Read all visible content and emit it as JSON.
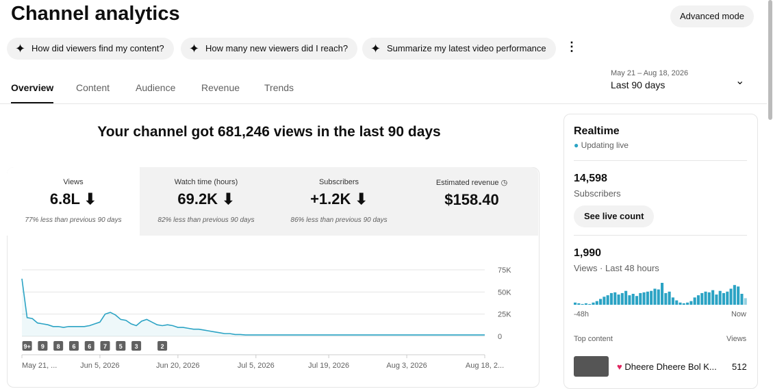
{
  "header": {
    "title": "Channel analytics",
    "advanced_button": "Advanced mode"
  },
  "chips": [
    "How did viewers find my content?",
    "How many new viewers did I reach?",
    "Summarize my latest video performance"
  ],
  "tabs": [
    "Overview",
    "Content",
    "Audience",
    "Revenue",
    "Trends"
  ],
  "date_range": {
    "range": "May 21 – Aug 18, 2026",
    "label": "Last 90 days"
  },
  "headline": "Your channel got 681,246 views in the last 90 days",
  "metrics": [
    {
      "label": "Views",
      "value": "6.8L",
      "note": "77% less than previous 90 days"
    },
    {
      "label": "Watch time (hours)",
      "value": "69.2K",
      "note": "82% less than previous 90 days"
    },
    {
      "label": "Subscribers",
      "value": "+1.2K",
      "note": "86% less than previous 90 days"
    },
    {
      "label": "Estimated revenue",
      "value": "$158.40"
    }
  ],
  "chart_data": {
    "type": "line",
    "color": "#2ba3c4",
    "values": [
      65000,
      21000,
      20000,
      15000,
      14000,
      13000,
      11000,
      11000,
      10000,
      11000,
      11000,
      11000,
      11000,
      12000,
      14000,
      16000,
      25000,
      27000,
      24000,
      19000,
      18000,
      14000,
      12000,
      17000,
      19000,
      16000,
      13000,
      12000,
      13000,
      12000,
      10000,
      10000,
      9000,
      8000,
      8000,
      7000,
      6000,
      5000,
      4000,
      3000,
      3000,
      2000,
      2000,
      1500,
      1500,
      1500,
      1500,
      1500,
      1500,
      1500,
      1500,
      1500,
      1500,
      1500,
      1500,
      1500,
      1500,
      1500,
      1500,
      1500,
      1500,
      1500,
      1500,
      1500,
      1500,
      1500,
      1500,
      1500,
      1500,
      1500,
      1500,
      1500,
      1500,
      1500,
      1500,
      1500,
      1500,
      1500,
      1500,
      1500,
      1500,
      1500,
      1500,
      1500,
      1500,
      1500,
      1500,
      1500,
      1500,
      1500
    ],
    "xlim": [
      0,
      89
    ],
    "xticks": [
      {
        "value": 0,
        "label": "May 21, ..."
      },
      {
        "value": 15,
        "label": "Jun 5, 2026"
      },
      {
        "value": 30,
        "label": "Jun 20, 2026"
      },
      {
        "value": 45,
        "label": "Jul 5, 2026"
      },
      {
        "value": 59,
        "label": "Jul 19, 2026"
      },
      {
        "value": 74,
        "label": "Aug 3, 2026"
      },
      {
        "value": 89,
        "label": "Aug 18, 2..."
      }
    ],
    "ylim": [
      0,
      75000
    ],
    "yticks": [
      0,
      {
        "value": 25000,
        "label": "25K"
      },
      {
        "value": 50000,
        "label": "50K"
      },
      {
        "value": 75000,
        "label": "75K"
      }
    ],
    "grid": true,
    "annotations": [
      {
        "label": "9+",
        "x": 1
      },
      {
        "label": "9",
        "x": 4
      },
      {
        "label": "8",
        "x": 7
      },
      {
        "label": "6",
        "x": 10
      },
      {
        "label": "6",
        "x": 13
      },
      {
        "label": "7",
        "x": 16
      },
      {
        "label": "5",
        "x": 19
      },
      {
        "label": "3",
        "x": 22
      },
      {
        "label": "2",
        "x": 27
      }
    ]
  },
  "realtime": {
    "title": "Realtime",
    "status": "Updating live",
    "subscribers": "14,598",
    "subscribers_label": "Subscribers",
    "live_button": "See live count",
    "views": "1,990",
    "views_label": "Views · Last 48 hours",
    "bars": {
      "type": "bar",
      "color": "#2ba3c4",
      "values": [
        3,
        2,
        1,
        2,
        1,
        3,
        5,
        8,
        11,
        13,
        16,
        17,
        14,
        16,
        19,
        13,
        15,
        12,
        16,
        17,
        18,
        19,
        22,
        21,
        30,
        16,
        18,
        10,
        6,
        3,
        2,
        3,
        5,
        10,
        13,
        16,
        18,
        17,
        20,
        14,
        19,
        16,
        18,
        22,
        27,
        25,
        15,
        9
      ],
      "start_label": "-48h",
      "end_label": "Now"
    },
    "top_content": "Top content",
    "views_header": "Views",
    "item_title": "Dheere Dheere Bol K...",
    "item_views": "512"
  }
}
